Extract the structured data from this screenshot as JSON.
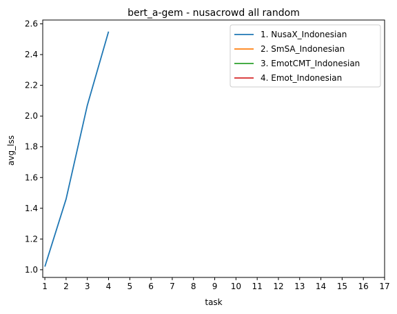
{
  "chart_data": {
    "type": "line",
    "title": "bert_a-gem - nusacrowd all random",
    "xlabel": "task",
    "ylabel": "avg_lss",
    "x": [
      1,
      2,
      3,
      4
    ],
    "xlim": [
      0.9,
      17
    ],
    "ylim": [
      0.95,
      2.625
    ],
    "xticks": [
      1,
      2,
      3,
      4,
      5,
      6,
      7,
      8,
      9,
      10,
      11,
      12,
      13,
      14,
      15,
      16,
      17
    ],
    "xtick_labels": [
      "1",
      "2",
      "3",
      "4",
      "5",
      "6",
      "7",
      "8",
      "9",
      "10",
      "11",
      "12",
      "13",
      "14",
      "15",
      "16",
      "17"
    ],
    "yticks": [
      1.0,
      1.2,
      1.4,
      1.6,
      1.8,
      2.0,
      2.2,
      2.4,
      2.6
    ],
    "ytick_labels": [
      "1.0",
      "1.2",
      "1.4",
      "1.6",
      "1.8",
      "2.0",
      "2.2",
      "2.4",
      "2.6"
    ],
    "grid": false,
    "legend_position": "top-right",
    "series": [
      {
        "name": "1. NusaX_Indonesian",
        "color": "#1f77b4",
        "x": [
          1,
          2,
          3,
          4
        ],
        "values": [
          1.02,
          1.46,
          2.07,
          2.55
        ]
      },
      {
        "name": "2. SmSA_Indonesian",
        "color": "#ff7f0e",
        "x": [],
        "values": []
      },
      {
        "name": "3. EmotCMT_Indonesian",
        "color": "#2ca02c",
        "x": [],
        "values": []
      },
      {
        "name": "4. Emot_Indonesian",
        "color": "#d62728",
        "x": [],
        "values": []
      }
    ]
  }
}
